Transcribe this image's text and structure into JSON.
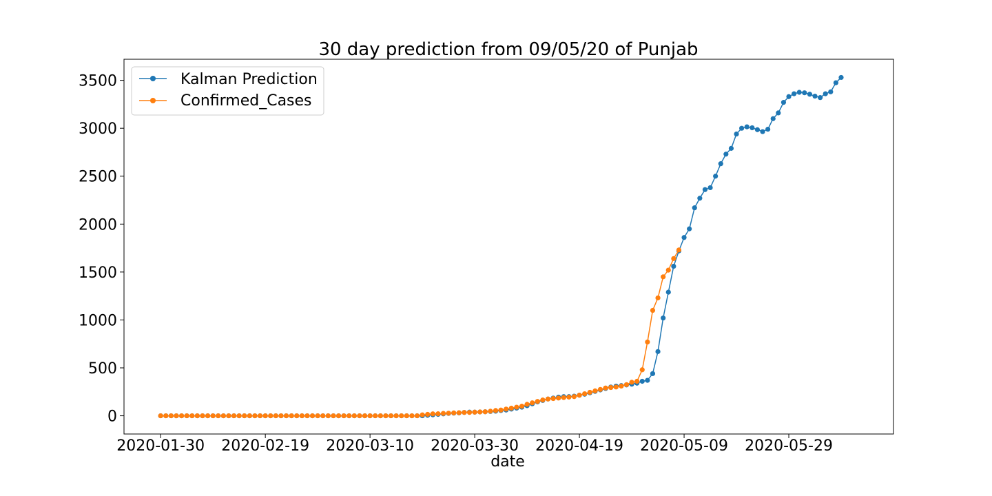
{
  "chart_data": {
    "type": "line",
    "title": "30 day prediction from 09/05/20 of Punjab",
    "xlabel": "date",
    "ylabel": "",
    "x_start_date": "2020-01-30",
    "x_tick_labels": [
      "2020-01-30",
      "2020-02-19",
      "2020-03-10",
      "2020-03-30",
      "2020-04-19",
      "2020-05-09",
      "2020-05-29"
    ],
    "y_ticks": [
      0,
      500,
      1000,
      1500,
      2000,
      2500,
      3000,
      3500
    ],
    "xlim": [
      "2020-01-23",
      "2020-06-18"
    ],
    "ylim": [
      -190,
      3720
    ],
    "grid": false,
    "legend_position": "top-left",
    "colors": {
      "kalman": "#1f77b4",
      "confirmed": "#ff7f0e"
    },
    "series": [
      {
        "name": "Kalman Prediction",
        "color": "#1f77b4",
        "marker": "circle",
        "points": [
          [
            "2020-01-30",
            0
          ],
          [
            "2020-01-31",
            0
          ],
          [
            "2020-02-01",
            0
          ],
          [
            "2020-02-02",
            0
          ],
          [
            "2020-02-03",
            0
          ],
          [
            "2020-02-04",
            0
          ],
          [
            "2020-02-05",
            0
          ],
          [
            "2020-02-06",
            0
          ],
          [
            "2020-02-07",
            0
          ],
          [
            "2020-02-08",
            0
          ],
          [
            "2020-02-09",
            0
          ],
          [
            "2020-02-10",
            0
          ],
          [
            "2020-02-11",
            0
          ],
          [
            "2020-02-12",
            0
          ],
          [
            "2020-02-13",
            0
          ],
          [
            "2020-02-14",
            0
          ],
          [
            "2020-02-15",
            0
          ],
          [
            "2020-02-16",
            0
          ],
          [
            "2020-02-17",
            0
          ],
          [
            "2020-02-18",
            0
          ],
          [
            "2020-02-19",
            0
          ],
          [
            "2020-02-20",
            0
          ],
          [
            "2020-02-21",
            0
          ],
          [
            "2020-02-22",
            0
          ],
          [
            "2020-02-23",
            0
          ],
          [
            "2020-02-24",
            0
          ],
          [
            "2020-02-25",
            0
          ],
          [
            "2020-02-26",
            0
          ],
          [
            "2020-02-27",
            0
          ],
          [
            "2020-02-28",
            0
          ],
          [
            "2020-02-29",
            0
          ],
          [
            "2020-03-01",
            0
          ],
          [
            "2020-03-02",
            0
          ],
          [
            "2020-03-03",
            0
          ],
          [
            "2020-03-04",
            0
          ],
          [
            "2020-03-05",
            0
          ],
          [
            "2020-03-06",
            0
          ],
          [
            "2020-03-07",
            0
          ],
          [
            "2020-03-08",
            0
          ],
          [
            "2020-03-09",
            0
          ],
          [
            "2020-03-10",
            0
          ],
          [
            "2020-03-11",
            0
          ],
          [
            "2020-03-12",
            0
          ],
          [
            "2020-03-13",
            0
          ],
          [
            "2020-03-14",
            0
          ],
          [
            "2020-03-15",
            0
          ],
          [
            "2020-03-16",
            0
          ],
          [
            "2020-03-17",
            0
          ],
          [
            "2020-03-18",
            0
          ],
          [
            "2020-03-19",
            0
          ],
          [
            "2020-03-20",
            0
          ],
          [
            "2020-03-21",
            5
          ],
          [
            "2020-03-22",
            10
          ],
          [
            "2020-03-23",
            15
          ],
          [
            "2020-03-24",
            20
          ],
          [
            "2020-03-25",
            25
          ],
          [
            "2020-03-26",
            28
          ],
          [
            "2020-03-27",
            30
          ],
          [
            "2020-03-28",
            35
          ],
          [
            "2020-03-29",
            38
          ],
          [
            "2020-03-30",
            38
          ],
          [
            "2020-03-31",
            40
          ],
          [
            "2020-04-01",
            42
          ],
          [
            "2020-04-02",
            45
          ],
          [
            "2020-04-03",
            48
          ],
          [
            "2020-04-04",
            55
          ],
          [
            "2020-04-05",
            60
          ],
          [
            "2020-04-06",
            70
          ],
          [
            "2020-04-07",
            80
          ],
          [
            "2020-04-08",
            90
          ],
          [
            "2020-04-09",
            105
          ],
          [
            "2020-04-10",
            125
          ],
          [
            "2020-04-11",
            145
          ],
          [
            "2020-04-12",
            160
          ],
          [
            "2020-04-13",
            175
          ],
          [
            "2020-04-14",
            185
          ],
          [
            "2020-04-15",
            195
          ],
          [
            "2020-04-16",
            200
          ],
          [
            "2020-04-17",
            200
          ],
          [
            "2020-04-18",
            205
          ],
          [
            "2020-04-19",
            215
          ],
          [
            "2020-04-20",
            225
          ],
          [
            "2020-04-21",
            240
          ],
          [
            "2020-04-22",
            255
          ],
          [
            "2020-04-23",
            270
          ],
          [
            "2020-04-24",
            285
          ],
          [
            "2020-04-25",
            300
          ],
          [
            "2020-04-26",
            310
          ],
          [
            "2020-04-27",
            315
          ],
          [
            "2020-04-28",
            322
          ],
          [
            "2020-04-29",
            330
          ],
          [
            "2020-04-30",
            340
          ],
          [
            "2020-05-01",
            360
          ],
          [
            "2020-05-02",
            370
          ],
          [
            "2020-05-03",
            440
          ],
          [
            "2020-05-04",
            670
          ],
          [
            "2020-05-05",
            1020
          ],
          [
            "2020-05-06",
            1290
          ],
          [
            "2020-05-07",
            1560
          ],
          [
            "2020-05-08",
            1720
          ],
          [
            "2020-05-09",
            1860
          ],
          [
            "2020-05-10",
            1950
          ],
          [
            "2020-05-11",
            2170
          ],
          [
            "2020-05-12",
            2270
          ],
          [
            "2020-05-13",
            2360
          ],
          [
            "2020-05-14",
            2380
          ],
          [
            "2020-05-15",
            2500
          ],
          [
            "2020-05-16",
            2630
          ],
          [
            "2020-05-17",
            2730
          ],
          [
            "2020-05-18",
            2790
          ],
          [
            "2020-05-19",
            2940
          ],
          [
            "2020-05-20",
            3000
          ],
          [
            "2020-05-21",
            3015
          ],
          [
            "2020-05-22",
            3005
          ],
          [
            "2020-05-23",
            2985
          ],
          [
            "2020-05-24",
            2965
          ],
          [
            "2020-05-25",
            2990
          ],
          [
            "2020-05-26",
            3100
          ],
          [
            "2020-05-27",
            3160
          ],
          [
            "2020-05-28",
            3270
          ],
          [
            "2020-05-29",
            3330
          ],
          [
            "2020-05-30",
            3360
          ],
          [
            "2020-05-31",
            3375
          ],
          [
            "2020-06-01",
            3370
          ],
          [
            "2020-06-02",
            3355
          ],
          [
            "2020-06-03",
            3335
          ],
          [
            "2020-06-04",
            3320
          ],
          [
            "2020-06-05",
            3360
          ],
          [
            "2020-06-06",
            3380
          ],
          [
            "2020-06-07",
            3475
          ],
          [
            "2020-06-08",
            3530
          ]
        ]
      },
      {
        "name": "Confirmed_Cases",
        "color": "#ff7f0e",
        "marker": "circle",
        "points": [
          [
            "2020-01-30",
            0
          ],
          [
            "2020-01-31",
            0
          ],
          [
            "2020-02-01",
            0
          ],
          [
            "2020-02-02",
            0
          ],
          [
            "2020-02-03",
            0
          ],
          [
            "2020-02-04",
            0
          ],
          [
            "2020-02-05",
            0
          ],
          [
            "2020-02-06",
            0
          ],
          [
            "2020-02-07",
            0
          ],
          [
            "2020-02-08",
            0
          ],
          [
            "2020-02-09",
            0
          ],
          [
            "2020-02-10",
            0
          ],
          [
            "2020-02-11",
            0
          ],
          [
            "2020-02-12",
            0
          ],
          [
            "2020-02-13",
            0
          ],
          [
            "2020-02-14",
            0
          ],
          [
            "2020-02-15",
            0
          ],
          [
            "2020-02-16",
            0
          ],
          [
            "2020-02-17",
            0
          ],
          [
            "2020-02-18",
            0
          ],
          [
            "2020-02-19",
            0
          ],
          [
            "2020-02-20",
            0
          ],
          [
            "2020-02-21",
            0
          ],
          [
            "2020-02-22",
            0
          ],
          [
            "2020-02-23",
            0
          ],
          [
            "2020-02-24",
            0
          ],
          [
            "2020-02-25",
            0
          ],
          [
            "2020-02-26",
            0
          ],
          [
            "2020-02-27",
            0
          ],
          [
            "2020-02-28",
            0
          ],
          [
            "2020-02-29",
            0
          ],
          [
            "2020-03-01",
            0
          ],
          [
            "2020-03-02",
            0
          ],
          [
            "2020-03-03",
            0
          ],
          [
            "2020-03-04",
            0
          ],
          [
            "2020-03-05",
            0
          ],
          [
            "2020-03-06",
            0
          ],
          [
            "2020-03-07",
            0
          ],
          [
            "2020-03-08",
            0
          ],
          [
            "2020-03-09",
            0
          ],
          [
            "2020-03-10",
            0
          ],
          [
            "2020-03-11",
            0
          ],
          [
            "2020-03-12",
            0
          ],
          [
            "2020-03-13",
            0
          ],
          [
            "2020-03-14",
            0
          ],
          [
            "2020-03-15",
            0
          ],
          [
            "2020-03-16",
            0
          ],
          [
            "2020-03-17",
            0
          ],
          [
            "2020-03-18",
            0
          ],
          [
            "2020-03-19",
            0
          ],
          [
            "2020-03-20",
            10
          ],
          [
            "2020-03-21",
            15
          ],
          [
            "2020-03-22",
            20
          ],
          [
            "2020-03-23",
            21
          ],
          [
            "2020-03-24",
            25
          ],
          [
            "2020-03-25",
            27
          ],
          [
            "2020-03-26",
            30
          ],
          [
            "2020-03-27",
            32
          ],
          [
            "2020-03-28",
            35
          ],
          [
            "2020-03-29",
            35
          ],
          [
            "2020-03-30",
            38
          ],
          [
            "2020-03-31",
            40
          ],
          [
            "2020-04-01",
            42
          ],
          [
            "2020-04-02",
            48
          ],
          [
            "2020-04-03",
            55
          ],
          [
            "2020-04-04",
            60
          ],
          [
            "2020-04-05",
            70
          ],
          [
            "2020-04-06",
            80
          ],
          [
            "2020-04-07",
            90
          ],
          [
            "2020-04-08",
            100
          ],
          [
            "2020-04-09",
            120
          ],
          [
            "2020-04-10",
            135
          ],
          [
            "2020-04-11",
            150
          ],
          [
            "2020-04-12",
            165
          ],
          [
            "2020-04-13",
            175
          ],
          [
            "2020-04-14",
            180
          ],
          [
            "2020-04-15",
            185
          ],
          [
            "2020-04-16",
            190
          ],
          [
            "2020-04-17",
            195
          ],
          [
            "2020-04-18",
            200
          ],
          [
            "2020-04-19",
            215
          ],
          [
            "2020-04-20",
            230
          ],
          [
            "2020-04-21",
            245
          ],
          [
            "2020-04-22",
            260
          ],
          [
            "2020-04-23",
            275
          ],
          [
            "2020-04-24",
            290
          ],
          [
            "2020-04-25",
            295
          ],
          [
            "2020-04-26",
            300
          ],
          [
            "2020-04-27",
            310
          ],
          [
            "2020-04-28",
            325
          ],
          [
            "2020-04-29",
            350
          ],
          [
            "2020-04-30",
            360
          ],
          [
            "2020-05-01",
            480
          ],
          [
            "2020-05-02",
            770
          ],
          [
            "2020-05-03",
            1100
          ],
          [
            "2020-05-04",
            1230
          ],
          [
            "2020-05-05",
            1450
          ],
          [
            "2020-05-06",
            1520
          ],
          [
            "2020-05-07",
            1640
          ],
          [
            "2020-05-08",
            1730
          ]
        ]
      }
    ]
  }
}
